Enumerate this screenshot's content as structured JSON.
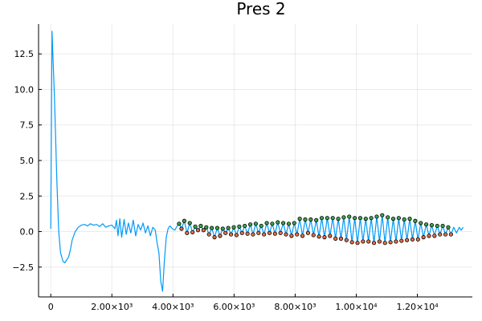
{
  "chart_data": {
    "type": "line",
    "title": "Pres 2",
    "xlabel": "",
    "ylabel": "",
    "xlim": [
      -400,
      13800
    ],
    "ylim": [
      -4.6,
      14.6
    ],
    "grid": true,
    "legend": "none",
    "x_ticks": [
      {
        "value": 0,
        "label": "0"
      },
      {
        "value": 2000,
        "label": "2.00×10³"
      },
      {
        "value": 4000,
        "label": "4.00×10³"
      },
      {
        "value": 6000,
        "label": "6.00×10³"
      },
      {
        "value": 8000,
        "label": "8.00×10³"
      },
      {
        "value": 10000,
        "label": "1.00×10⁴"
      },
      {
        "value": 12000,
        "label": "1.20×10⁴"
      }
    ],
    "y_ticks": [
      {
        "value": -2.5,
        "label": "−2.5"
      },
      {
        "value": 0,
        "label": "0.0"
      },
      {
        "value": 2.5,
        "label": "2.5"
      },
      {
        "value": 5,
        "label": "5.0"
      },
      {
        "value": 7.5,
        "label": "7.5"
      },
      {
        "value": 10,
        "label": "10.0"
      },
      {
        "value": 12.5,
        "label": "12.5"
      }
    ],
    "series": [
      {
        "color": "#009af9",
        "points": [
          [
            0,
            0.2
          ],
          [
            40,
            14.1
          ],
          [
            120,
            9.5
          ],
          [
            200,
            3.5
          ],
          [
            260,
            0.0
          ],
          [
            320,
            -1.5
          ],
          [
            400,
            -2.1
          ],
          [
            460,
            -2.2
          ],
          [
            520,
            -2.0
          ],
          [
            580,
            -1.8
          ],
          [
            640,
            -1.3
          ],
          [
            700,
            -0.6
          ],
          [
            800,
            0.0
          ],
          [
            900,
            0.3
          ],
          [
            1000,
            0.45
          ],
          [
            1100,
            0.5
          ],
          [
            1200,
            0.4
          ],
          [
            1300,
            0.55
          ],
          [
            1400,
            0.45
          ],
          [
            1500,
            0.5
          ],
          [
            1600,
            0.35
          ],
          [
            1700,
            0.55
          ],
          [
            1800,
            0.3
          ],
          [
            1900,
            0.4
          ],
          [
            2000,
            0.45
          ],
          [
            2100,
            0.2
          ],
          [
            2150,
            0.8
          ],
          [
            2200,
            -0.3
          ],
          [
            2260,
            0.9
          ],
          [
            2320,
            -0.4
          ],
          [
            2400,
            0.85
          ],
          [
            2470,
            -0.2
          ],
          [
            2540,
            0.6
          ],
          [
            2620,
            -0.1
          ],
          [
            2700,
            0.8
          ],
          [
            2780,
            -0.3
          ],
          [
            2860,
            0.5
          ],
          [
            2940,
            0.1
          ],
          [
            3020,
            0.6
          ],
          [
            3100,
            -0.1
          ],
          [
            3180,
            0.4
          ],
          [
            3260,
            -0.3
          ],
          [
            3340,
            0.3
          ],
          [
            3420,
            0.1
          ],
          [
            3480,
            -0.8
          ],
          [
            3540,
            -1.5
          ],
          [
            3600,
            -3.5
          ],
          [
            3660,
            -4.2
          ],
          [
            3720,
            -2.0
          ],
          [
            3780,
            -0.4
          ],
          [
            3840,
            0.2
          ],
          [
            3900,
            0.4
          ],
          [
            3980,
            0.2
          ],
          [
            4060,
            0.1
          ],
          [
            4140,
            0.4
          ],
          [
            4200,
            0.55
          ],
          [
            4280,
            0.2
          ],
          [
            4370,
            0.75
          ],
          [
            4460,
            -0.1
          ],
          [
            4550,
            0.6
          ],
          [
            4640,
            -0.05
          ],
          [
            4730,
            0.35
          ],
          [
            4820,
            0.1
          ],
          [
            4910,
            0.4
          ],
          [
            5000,
            0.1
          ],
          [
            5090,
            0.3
          ],
          [
            5180,
            -0.2
          ],
          [
            5270,
            0.25
          ],
          [
            5360,
            -0.4
          ],
          [
            5450,
            0.25
          ],
          [
            5540,
            -0.3
          ],
          [
            5630,
            0.2
          ],
          [
            5720,
            -0.1
          ],
          [
            5810,
            0.25
          ],
          [
            5900,
            -0.2
          ],
          [
            5990,
            0.3
          ],
          [
            6080,
            -0.25
          ],
          [
            6170,
            0.35
          ],
          [
            6260,
            -0.1
          ],
          [
            6350,
            0.4
          ],
          [
            6440,
            -0.15
          ],
          [
            6530,
            0.5
          ],
          [
            6620,
            -0.2
          ],
          [
            6710,
            0.55
          ],
          [
            6800,
            -0.1
          ],
          [
            6890,
            0.4
          ],
          [
            6980,
            -0.2
          ],
          [
            7070,
            0.6
          ],
          [
            7160,
            -0.1
          ],
          [
            7250,
            0.55
          ],
          [
            7340,
            -0.15
          ],
          [
            7430,
            0.65
          ],
          [
            7520,
            -0.1
          ],
          [
            7610,
            0.6
          ],
          [
            7700,
            -0.2
          ],
          [
            7790,
            0.55
          ],
          [
            7880,
            -0.3
          ],
          [
            7970,
            0.6
          ],
          [
            8060,
            -0.2
          ],
          [
            8150,
            0.9
          ],
          [
            8240,
            -0.3
          ],
          [
            8330,
            0.85
          ],
          [
            8420,
            -0.1
          ],
          [
            8510,
            0.85
          ],
          [
            8600,
            -0.25
          ],
          [
            8690,
            0.8
          ],
          [
            8780,
            -0.35
          ],
          [
            8870,
            0.95
          ],
          [
            8960,
            -0.4
          ],
          [
            9050,
            0.95
          ],
          [
            9140,
            -0.3
          ],
          [
            9230,
            0.95
          ],
          [
            9320,
            -0.5
          ],
          [
            9410,
            0.9
          ],
          [
            9500,
            -0.5
          ],
          [
            9590,
            1.0
          ],
          [
            9680,
            -0.6
          ],
          [
            9770,
            1.05
          ],
          [
            9860,
            -0.75
          ],
          [
            9950,
            0.95
          ],
          [
            10040,
            -0.8
          ],
          [
            10130,
            0.95
          ],
          [
            10220,
            -0.7
          ],
          [
            10310,
            0.9
          ],
          [
            10400,
            -0.7
          ],
          [
            10490,
            0.95
          ],
          [
            10580,
            -0.8
          ],
          [
            10670,
            1.05
          ],
          [
            10760,
            -0.7
          ],
          [
            10850,
            1.15
          ],
          [
            10940,
            -0.8
          ],
          [
            11030,
            1.0
          ],
          [
            11120,
            -0.75
          ],
          [
            11210,
            0.9
          ],
          [
            11300,
            -0.7
          ],
          [
            11390,
            0.95
          ],
          [
            11480,
            -0.65
          ],
          [
            11570,
            0.85
          ],
          [
            11660,
            -0.6
          ],
          [
            11750,
            0.9
          ],
          [
            11840,
            -0.55
          ],
          [
            11930,
            0.75
          ],
          [
            12020,
            -0.55
          ],
          [
            12110,
            0.6
          ],
          [
            12200,
            -0.4
          ],
          [
            12290,
            0.5
          ],
          [
            12380,
            -0.3
          ],
          [
            12470,
            0.45
          ],
          [
            12560,
            -0.3
          ],
          [
            12650,
            0.4
          ],
          [
            12740,
            -0.2
          ],
          [
            12830,
            0.4
          ],
          [
            12920,
            -0.2
          ],
          [
            13010,
            0.3
          ],
          [
            13100,
            -0.2
          ],
          [
            13190,
            0.3
          ],
          [
            13280,
            -0.1
          ],
          [
            13370,
            0.3
          ],
          [
            13430,
            0.1
          ],
          [
            13500,
            0.3
          ]
        ]
      }
    ],
    "markers": [
      {
        "color": "#3da44d",
        "points": [
          [
            4200,
            0.55
          ],
          [
            4370,
            0.75
          ],
          [
            4550,
            0.6
          ],
          [
            4730,
            0.35
          ],
          [
            4910,
            0.4
          ],
          [
            5090,
            0.3
          ],
          [
            5270,
            0.25
          ],
          [
            5450,
            0.25
          ],
          [
            5630,
            0.2
          ],
          [
            5810,
            0.25
          ],
          [
            5990,
            0.3
          ],
          [
            6170,
            0.35
          ],
          [
            6350,
            0.4
          ],
          [
            6530,
            0.5
          ],
          [
            6710,
            0.55
          ],
          [
            6890,
            0.4
          ],
          [
            7070,
            0.6
          ],
          [
            7250,
            0.55
          ],
          [
            7430,
            0.65
          ],
          [
            7610,
            0.6
          ],
          [
            7790,
            0.55
          ],
          [
            7970,
            0.6
          ],
          [
            8150,
            0.9
          ],
          [
            8330,
            0.85
          ],
          [
            8510,
            0.85
          ],
          [
            8690,
            0.8
          ],
          [
            8870,
            0.95
          ],
          [
            9050,
            0.95
          ],
          [
            9230,
            0.95
          ],
          [
            9410,
            0.9
          ],
          [
            9590,
            1.0
          ],
          [
            9770,
            1.05
          ],
          [
            9950,
            0.95
          ],
          [
            10130,
            0.95
          ],
          [
            10310,
            0.9
          ],
          [
            10490,
            0.95
          ],
          [
            10670,
            1.05
          ],
          [
            10850,
            1.15
          ],
          [
            11030,
            1.0
          ],
          [
            11210,
            0.9
          ],
          [
            11390,
            0.95
          ],
          [
            11570,
            0.85
          ],
          [
            11750,
            0.9
          ],
          [
            11930,
            0.75
          ],
          [
            12110,
            0.6
          ],
          [
            12290,
            0.5
          ],
          [
            12470,
            0.45
          ],
          [
            12650,
            0.4
          ],
          [
            12830,
            0.4
          ],
          [
            13010,
            0.3
          ]
        ]
      },
      {
        "color": "#e26f46",
        "points": [
          [
            4280,
            0.2
          ],
          [
            4460,
            -0.1
          ],
          [
            4640,
            -0.05
          ],
          [
            4820,
            0.1
          ],
          [
            5000,
            0.1
          ],
          [
            5180,
            -0.2
          ],
          [
            5360,
            -0.4
          ],
          [
            5540,
            -0.3
          ],
          [
            5720,
            -0.1
          ],
          [
            5900,
            -0.2
          ],
          [
            6080,
            -0.25
          ],
          [
            6260,
            -0.1
          ],
          [
            6440,
            -0.15
          ],
          [
            6620,
            -0.2
          ],
          [
            6800,
            -0.1
          ],
          [
            6980,
            -0.2
          ],
          [
            7160,
            -0.1
          ],
          [
            7340,
            -0.15
          ],
          [
            7520,
            -0.1
          ],
          [
            7700,
            -0.2
          ],
          [
            7880,
            -0.3
          ],
          [
            8060,
            -0.2
          ],
          [
            8240,
            -0.3
          ],
          [
            8420,
            -0.1
          ],
          [
            8600,
            -0.25
          ],
          [
            8780,
            -0.35
          ],
          [
            8960,
            -0.4
          ],
          [
            9140,
            -0.3
          ],
          [
            9320,
            -0.5
          ],
          [
            9500,
            -0.5
          ],
          [
            9680,
            -0.6
          ],
          [
            9860,
            -0.75
          ],
          [
            10040,
            -0.8
          ],
          [
            10220,
            -0.7
          ],
          [
            10400,
            -0.7
          ],
          [
            10580,
            -0.8
          ],
          [
            10760,
            -0.7
          ],
          [
            10940,
            -0.8
          ],
          [
            11120,
            -0.75
          ],
          [
            11300,
            -0.7
          ],
          [
            11480,
            -0.65
          ],
          [
            11660,
            -0.6
          ],
          [
            11840,
            -0.55
          ],
          [
            12020,
            -0.55
          ],
          [
            12200,
            -0.4
          ],
          [
            12380,
            -0.3
          ],
          [
            12560,
            -0.3
          ],
          [
            12740,
            -0.2
          ],
          [
            12920,
            -0.2
          ],
          [
            13100,
            -0.2
          ]
        ]
      }
    ]
  }
}
